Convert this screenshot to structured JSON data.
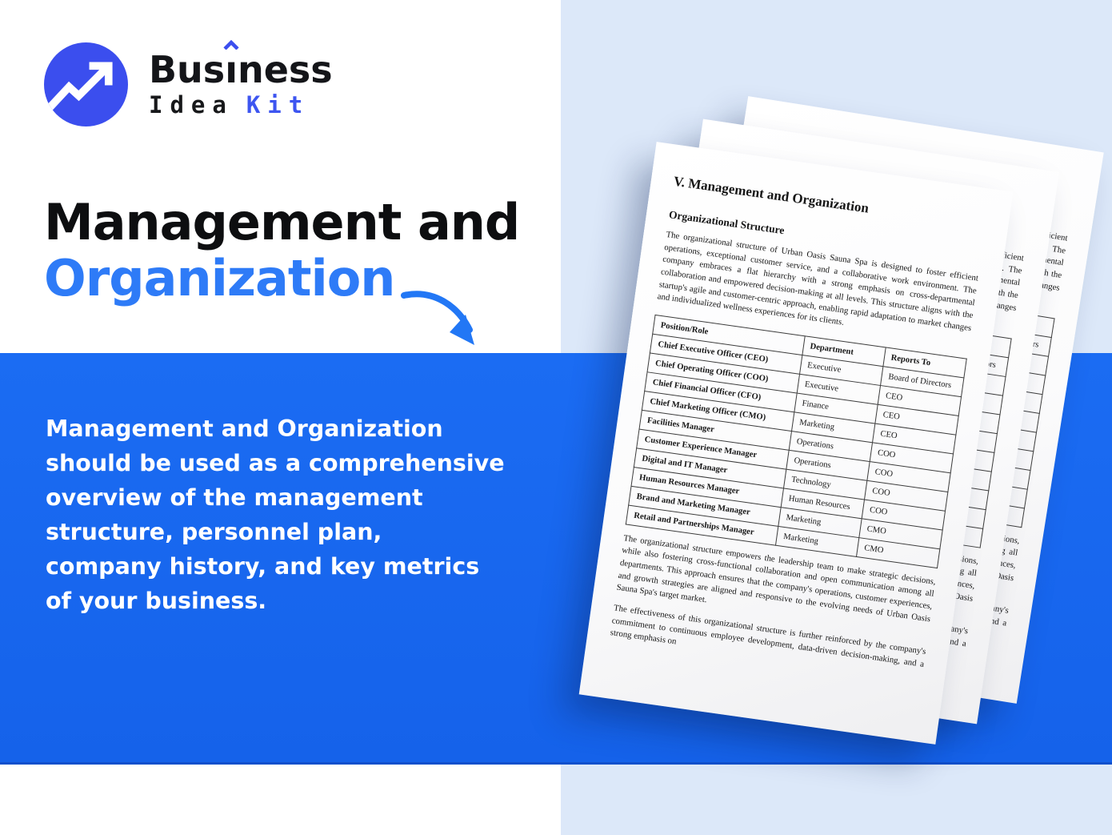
{
  "brand": {
    "full_name": "Business Idea Kit",
    "name_pre": "Bus",
    "name_i": "ı",
    "name_post": "ness",
    "word_idea": "Idea",
    "word_kit": "Kit"
  },
  "icons": {
    "logo_mark": "trending-up-arrow-in-circle",
    "brand_accent": "circumflex-accent",
    "hero_arrow": "curved-down-right-arrow"
  },
  "colors": {
    "brand_blue": "#3b4eee",
    "kit_blue": "#3d55f0",
    "accent_blue": "#2e7bf7",
    "banner_blue": "#1667ef",
    "panel_blue": "#dce8f9",
    "heading_black": "#0d0e10",
    "text_white": "#ffffff"
  },
  "hero": {
    "title_line1": "Management and",
    "title_line2": "Organization",
    "description": "Management and Organization\nshould be used as a comprehensive\noverview of the management\nstructure, personnel plan,\ncompany history, and key metrics\nof your business."
  },
  "doc": {
    "title": "V. Management and Organization",
    "section_heading": "Organizational Structure",
    "intro": "The organizational structure of Urban Oasis Sauna Spa is designed to foster efficient operations, exceptional customer service, and a collaborative work environment. The company embraces a flat hierarchy with a strong emphasis on cross-departmental collaboration and empowered decision-making at all levels. This structure aligns with the startup's agile and customer-centric approach, enabling rapid adaptation to market changes and individualized wellness experiences for its clients.",
    "table": {
      "headers": [
        "Position/Role",
        "Department",
        "Reports To"
      ],
      "rows": [
        [
          "Chief Executive Officer (CEO)",
          "Executive",
          "Board of Directors"
        ],
        [
          "Chief Operating Officer (COO)",
          "Executive",
          "CEO"
        ],
        [
          "Chief Financial Officer (CFO)",
          "Finance",
          "CEO"
        ],
        [
          "Chief Marketing Officer (CMO)",
          "Marketing",
          "CEO"
        ],
        [
          "Facilities Manager",
          "Operations",
          "COO"
        ],
        [
          "Customer Experience Manager",
          "Operations",
          "COO"
        ],
        [
          "Digital and IT Manager",
          "Technology",
          "COO"
        ],
        [
          "Human Resources Manager",
          "Human Resources",
          "COO"
        ],
        [
          "Brand and Marketing Manager",
          "Marketing",
          "CMO"
        ],
        [
          "Retail and Partnerships Manager",
          "Marketing",
          "CMO"
        ]
      ]
    },
    "closing_paragraph_1": "The organizational structure empowers the leadership team to make strategic decisions, while also fostering cross-functional collaboration and open communication among all departments. This approach ensures that the company's operations, customer experiences, and growth strategies are aligned and responsive to the evolving needs of Urban Oasis Sauna Spa's target market.",
    "closing_paragraph_2": "The effectiveness of this organizational structure is further reinforced by the company's commitment to continuous employee development, data-driven decision-making, and a strong emphasis on"
  }
}
